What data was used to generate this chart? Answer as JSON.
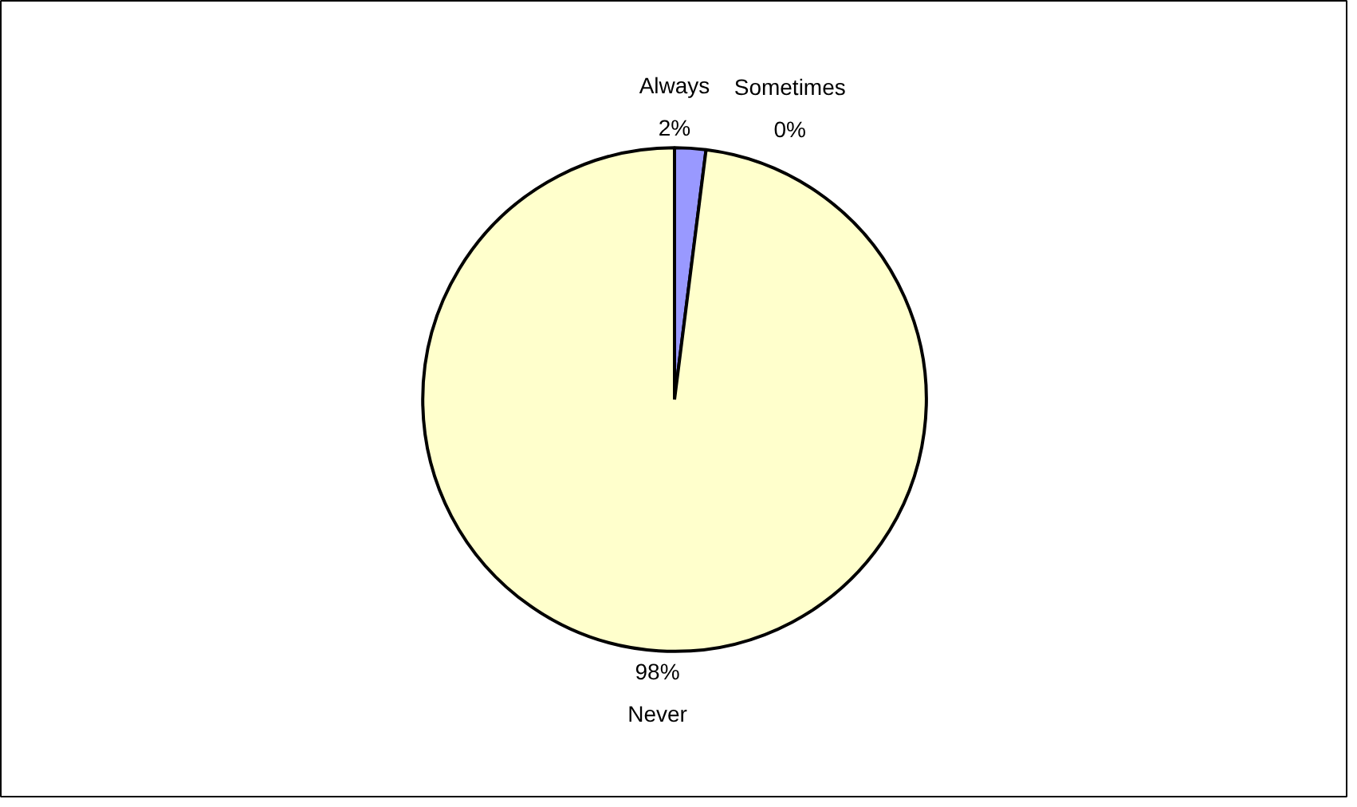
{
  "chart_data": {
    "type": "pie",
    "categories": [
      "Always",
      "Sometimes",
      "Never"
    ],
    "values": [
      2,
      0,
      98
    ],
    "value_labels": [
      "2%",
      "0%",
      "98%"
    ],
    "colors": [
      "#9999ff",
      "#993366",
      "#ffffcc"
    ],
    "data_labels": true,
    "legend": false
  }
}
